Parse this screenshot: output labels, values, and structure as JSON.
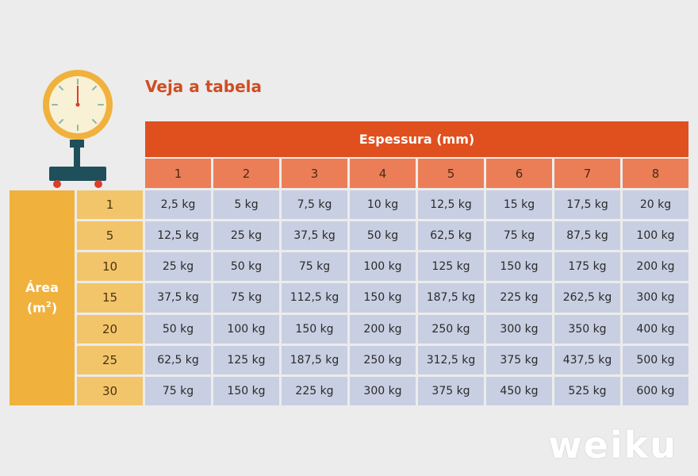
{
  "title": "Veja a tabela",
  "header": {
    "label": "Espessura (mm)"
  },
  "columns": [
    "1",
    "2",
    "3",
    "4",
    "5",
    "6",
    "7",
    "8"
  ],
  "area_label": {
    "line1": "Área",
    "line2_base": "(m",
    "line2_sup": "2",
    "line2_end": ")"
  },
  "rows": [
    {
      "area": "1",
      "values": [
        "2,5 kg",
        "5 kg",
        "7,5 kg",
        "10 kg",
        "12,5 kg",
        "15 kg",
        "17,5 kg",
        "20 kg"
      ]
    },
    {
      "area": "5",
      "values": [
        "12,5 kg",
        "25 kg",
        "37,5 kg",
        "50 kg",
        "62,5 kg",
        "75 kg",
        "87,5 kg",
        "100 kg"
      ]
    },
    {
      "area": "10",
      "values": [
        "25 kg",
        "50 kg",
        "75 kg",
        "100 kg",
        "125 kg",
        "150 kg",
        "175 kg",
        "200 kg"
      ]
    },
    {
      "area": "15",
      "values": [
        "37,5 kg",
        "75 kg",
        "112,5 kg",
        "150 kg",
        "187,5 kg",
        "225 kg",
        "262,5 kg",
        "300 kg"
      ]
    },
    {
      "area": "20",
      "values": [
        "50 kg",
        "100 kg",
        "150 kg",
        "200 kg",
        "250 kg",
        "300 kg",
        "350 kg",
        "400 kg"
      ]
    },
    {
      "area": "25",
      "values": [
        "62,5 kg",
        "125 kg",
        "187,5 kg",
        "250 kg",
        "312,5 kg",
        "375 kg",
        "437,5 kg",
        "500 kg"
      ]
    },
    {
      "area": "30",
      "values": [
        "75 kg",
        "150 kg",
        "225 kg",
        "300 kg",
        "375 kg",
        "450 kg",
        "525 kg",
        "600 kg"
      ]
    }
  ],
  "watermark": "weiku",
  "colors": {
    "title": "#cf4d22",
    "header": "#e0501f",
    "column_header": "#ec7e57",
    "area_label": "#f0b13d",
    "row_header": "#f3c56a",
    "cell": "#c9cfe2"
  },
  "icons": {
    "scale": "weighing-scale-icon"
  }
}
